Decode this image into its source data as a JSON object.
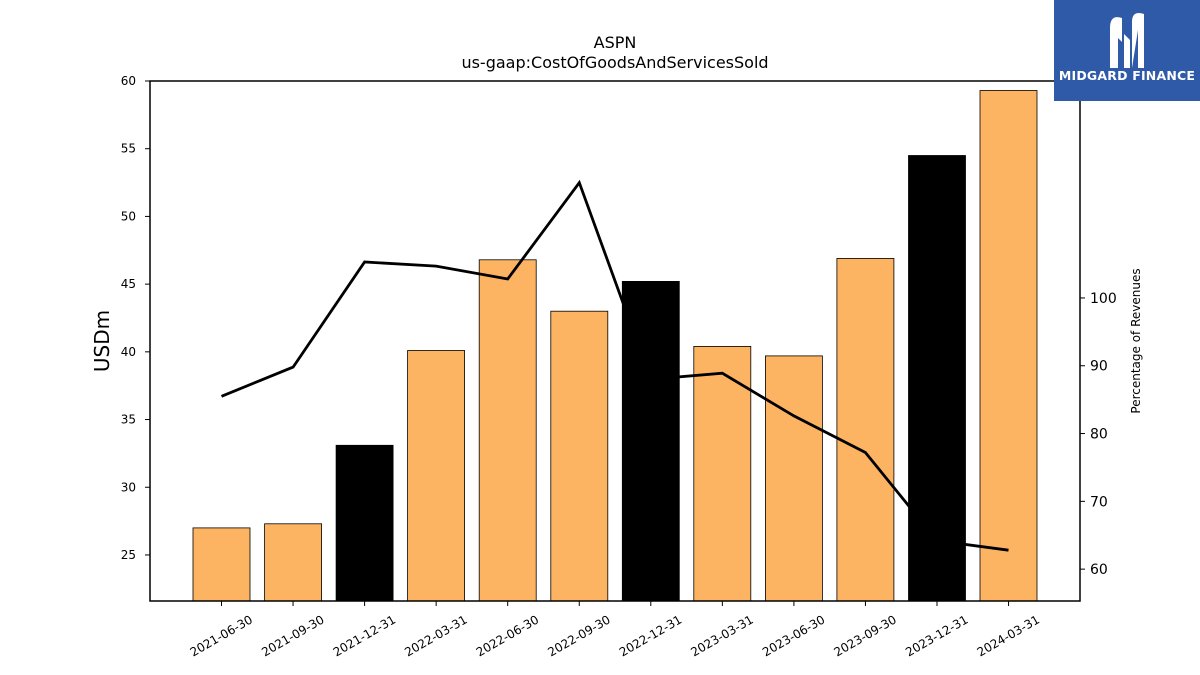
{
  "chart_data": {
    "type": "bar",
    "title": "ASPN",
    "subtitle": "us-gaap:CostOfGoodsAndServicesSold",
    "ylabel": "USDm",
    "y2label": "Percentage of Revenues",
    "ylim": [
      21.6,
      60
    ],
    "y2lim": [
      55.3,
      132
    ],
    "yticks": [
      25,
      30,
      35,
      40,
      45,
      50,
      55,
      60
    ],
    "y2ticks": [
      60,
      70,
      80,
      90,
      100
    ],
    "categories": [
      "2021-06-30",
      "2021-09-30",
      "2021-12-31",
      "2022-03-31",
      "2022-06-30",
      "2022-09-30",
      "2022-12-31",
      "2023-03-31",
      "2023-06-30",
      "2023-09-30",
      "2023-12-31",
      "2024-03-31"
    ],
    "series": [
      {
        "values": [
          27.0,
          27.3,
          33.1,
          40.1,
          46.8,
          43.0,
          45.2,
          40.4,
          39.7,
          46.9,
          54.5,
          59.3
        ],
        "colors": [
          "#fdb462",
          "#fdb462",
          "#000000",
          "#fdb462",
          "#fdb462",
          "#fdb462",
          "#000000",
          "#fdb462",
          "#fdb462",
          "#fdb462",
          "#000000",
          "#fdb462"
        ]
      },
      {
        "type": "line",
        "axis": "right",
        "values": [
          85.5,
          89.8,
          105.3,
          104.7,
          102.8,
          117.0,
          88.0,
          88.9,
          82.6,
          77.2,
          64.2,
          62.8
        ],
        "color": "#000000"
      }
    ],
    "grid": false
  },
  "logo": {
    "text": "MIDGARD FINANCE",
    "background": "#2f5aa8"
  }
}
